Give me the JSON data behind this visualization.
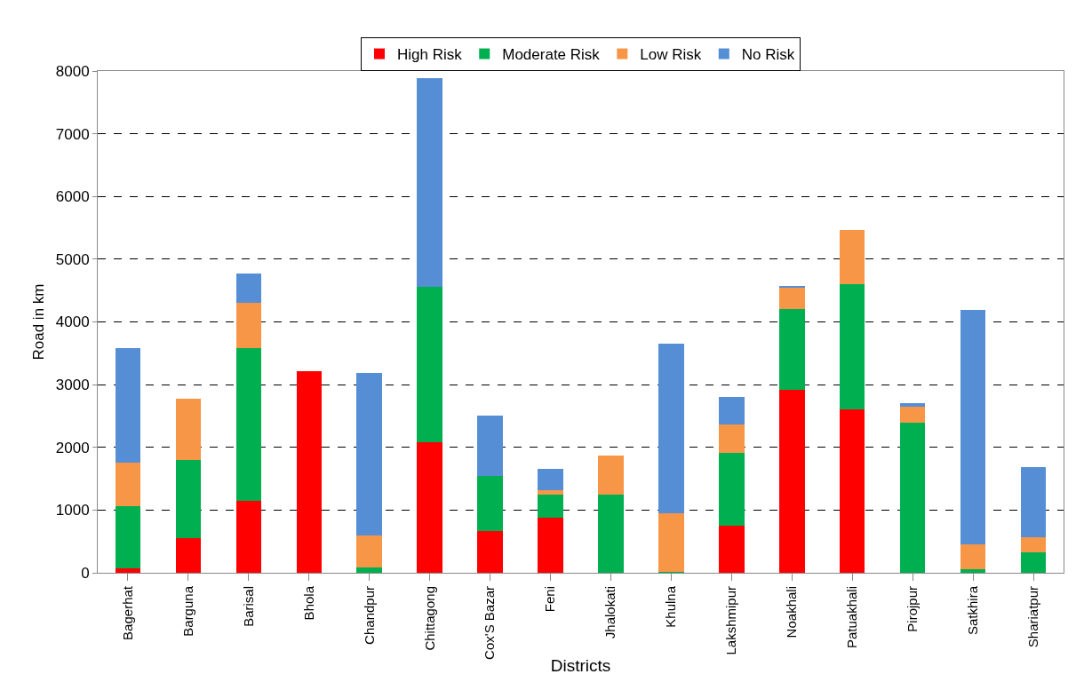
{
  "chart_data": {
    "type": "bar",
    "stacked": true,
    "xlabel": "Districts",
    "ylabel": "Road in km",
    "categories": [
      "Bagerhat",
      "Barguna",
      "Barisal",
      "Bhola",
      "Chandpur",
      "Chittagong",
      "Cox'S Bazar",
      "Feni",
      "Jhalokati",
      "Khulna",
      "Lakshmipur",
      "Noakhali",
      "Patuakhali",
      "Pirojpur",
      "Satkhira",
      "Shariatpur"
    ],
    "series": [
      {
        "name": "High Risk",
        "color": "#ff0000",
        "values": [
          70,
          550,
          1140,
          3220,
          0,
          2080,
          660,
          880,
          0,
          0,
          750,
          2920,
          2610,
          0,
          0,
          0
        ]
      },
      {
        "name": "Moderate Risk",
        "color": "#00b050",
        "values": [
          990,
          1250,
          2440,
          0,
          90,
          2480,
          880,
          370,
          1250,
          10,
          1160,
          1290,
          1990,
          2390,
          60,
          330
        ]
      },
      {
        "name": "Low Risk",
        "color": "#f79646",
        "values": [
          690,
          970,
          720,
          0,
          510,
          0,
          0,
          60,
          620,
          940,
          460,
          330,
          860,
          260,
          390,
          240
        ]
      },
      {
        "name": "No Risk",
        "color": "#558ed5",
        "values": [
          1830,
          0,
          470,
          0,
          2580,
          3320,
          960,
          350,
          0,
          2710,
          440,
          30,
          0,
          60,
          3740,
          1110
        ]
      }
    ],
    "ylim": [
      0,
      8000
    ],
    "yticks": [
      0,
      1000,
      2000,
      3000,
      4000,
      5000,
      6000,
      7000,
      8000
    ],
    "grid": "y",
    "legend": "top"
  }
}
